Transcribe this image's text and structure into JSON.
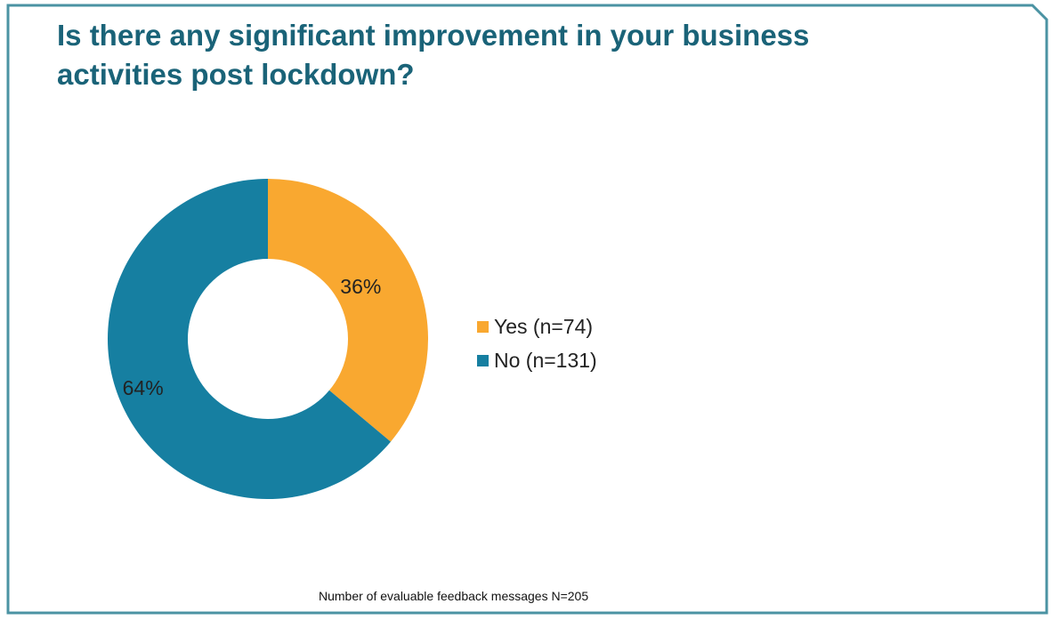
{
  "colors": {
    "border": "#4b93a3",
    "title": "#1a6378",
    "yes": "#f9a830",
    "no": "#167fa1"
  },
  "title_lines": [
    "Is there any significant improvement in your business",
    "activities post lockdown?"
  ],
  "footnote": "Number of evaluable feedback messages N=205",
  "chart_data": {
    "type": "pie",
    "variant": "donut",
    "title": "Is there any significant improvement in your business activities post lockdown?",
    "slices": [
      {
        "label": "Yes (n=74)",
        "value": 74,
        "percent_label": "36%",
        "color": "#f9a830"
      },
      {
        "label": "No (n=131)",
        "value": 131,
        "percent_label": "64%",
        "color": "#167fa1"
      }
    ],
    "legend_position": "right",
    "total_label": "Number of evaluable feedback messages N=205"
  }
}
